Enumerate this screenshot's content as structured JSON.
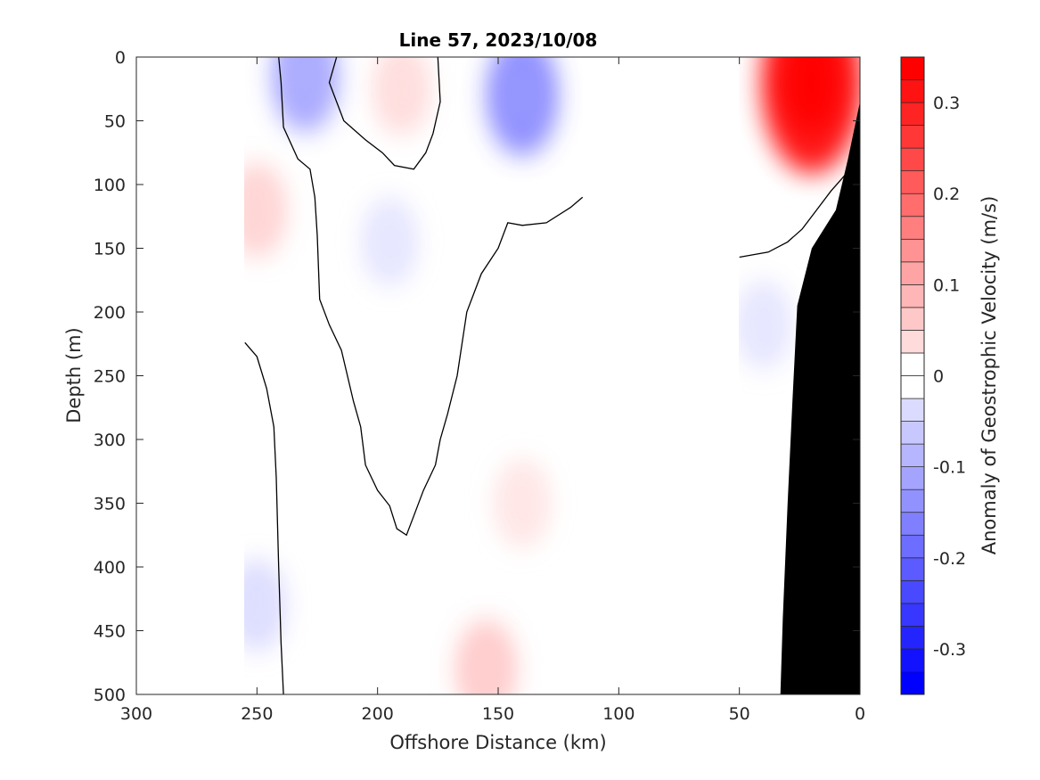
{
  "chart_data": {
    "type": "contour",
    "title": "Line 57, 2023/10/08",
    "xlabel": "Offshore Distance (km)",
    "ylabel": "Depth (m)",
    "colorbar_label": "Anomaly of Geostrophic Velocity (m/s)",
    "xlim": [
      300,
      0
    ],
    "ylim": [
      0,
      500
    ],
    "x_reversed": true,
    "y_reversed": true,
    "xticks": [
      "300",
      "250",
      "200",
      "150",
      "100",
      "50",
      "0"
    ],
    "xtick_values": [
      300,
      250,
      200,
      150,
      100,
      50,
      0
    ],
    "yticks": [
      "0",
      "50",
      "100",
      "150",
      "200",
      "250",
      "300",
      "350",
      "400",
      "450",
      "500"
    ],
    "ytick_values": [
      0,
      50,
      100,
      150,
      200,
      250,
      300,
      350,
      400,
      450,
      500
    ],
    "colorbar": {
      "range": [
        -0.35,
        0.35
      ],
      "step": 0.025,
      "ticks": [
        "0.3",
        "0.2",
        "0.1",
        "0",
        "-0.1",
        "-0.2",
        "-0.3"
      ],
      "tick_values": [
        0.3,
        0.2,
        0.1,
        0,
        -0.1,
        -0.2,
        -0.3
      ],
      "positive_color": "#ff0000",
      "negative_color": "#0000ff",
      "zero_color": "#ffffff"
    },
    "data_coverage_km": [
      [
        255,
        115
      ],
      [
        50,
        0
      ]
    ],
    "features": [
      {
        "label": "negative",
        "x": 230,
        "y": 15,
        "value": -0.1
      },
      {
        "label": "positive",
        "x": 190,
        "y": 25,
        "value": 0.04
      },
      {
        "label": "negative",
        "x": 140,
        "y": 30,
        "value": -0.13
      },
      {
        "label": "positive",
        "x": 250,
        "y": 120,
        "value": 0.05
      },
      {
        "label": "negative",
        "x": 195,
        "y": 145,
        "value": -0.03
      },
      {
        "label": "positive",
        "x": 140,
        "y": 350,
        "value": 0.03
      },
      {
        "label": "positive",
        "x": 155,
        "y": 480,
        "value": 0.06
      },
      {
        "label": "negative",
        "x": 250,
        "y": 430,
        "value": -0.04
      },
      {
        "label": "positive",
        "x": 20,
        "y": 20,
        "value": 0.32
      },
      {
        "label": "negative",
        "x": 40,
        "y": 210,
        "value": -0.03
      }
    ],
    "zero_contours": [
      [
        [
          241,
          0
        ],
        [
          240,
          20
        ],
        [
          239,
          55
        ],
        [
          233,
          80
        ],
        [
          228,
          88
        ],
        [
          226,
          110
        ],
        [
          225,
          140
        ],
        [
          224,
          190
        ],
        [
          220,
          210
        ],
        [
          215,
          230
        ],
        [
          210,
          270
        ],
        [
          207,
          290
        ],
        [
          205,
          320
        ],
        [
          200,
          340
        ],
        [
          195,
          352
        ],
        [
          192,
          370
        ],
        [
          188,
          375
        ],
        [
          185,
          360
        ],
        [
          181,
          340
        ],
        [
          176,
          320
        ],
        [
          174,
          300
        ],
        [
          171,
          280
        ],
        [
          167,
          250
        ],
        [
          163,
          200
        ],
        [
          157,
          170
        ],
        [
          150,
          150
        ],
        [
          146,
          130
        ],
        [
          140,
          132
        ],
        [
          130,
          130
        ],
        [
          120,
          118
        ],
        [
          115,
          110
        ]
      ],
      [
        [
          217,
          0
        ],
        [
          220,
          20
        ],
        [
          214,
          50
        ],
        [
          205,
          65
        ],
        [
          198,
          75
        ],
        [
          193,
          85
        ],
        [
          185,
          88
        ],
        [
          180,
          75
        ],
        [
          177,
          60
        ],
        [
          174,
          35
        ],
        [
          175,
          0
        ]
      ],
      [
        [
          255,
          224
        ],
        [
          250,
          235
        ],
        [
          246,
          260
        ],
        [
          243,
          290
        ],
        [
          242,
          330
        ],
        [
          241,
          400
        ],
        [
          240,
          460
        ],
        [
          239,
          500
        ]
      ],
      [
        [
          50,
          157
        ],
        [
          44,
          155
        ],
        [
          38,
          153
        ],
        [
          30,
          145
        ],
        [
          24,
          135
        ],
        [
          18,
          120
        ],
        [
          12,
          105
        ],
        [
          5,
          90
        ],
        [
          4,
          83
        ]
      ]
    ],
    "bathymetry": [
      [
        33,
        500
      ],
      [
        32,
        440
      ],
      [
        30,
        350
      ],
      [
        28,
        270
      ],
      [
        26,
        195
      ],
      [
        20,
        150
      ],
      [
        10,
        120
      ],
      [
        5,
        80
      ],
      [
        0,
        35
      ]
    ]
  }
}
